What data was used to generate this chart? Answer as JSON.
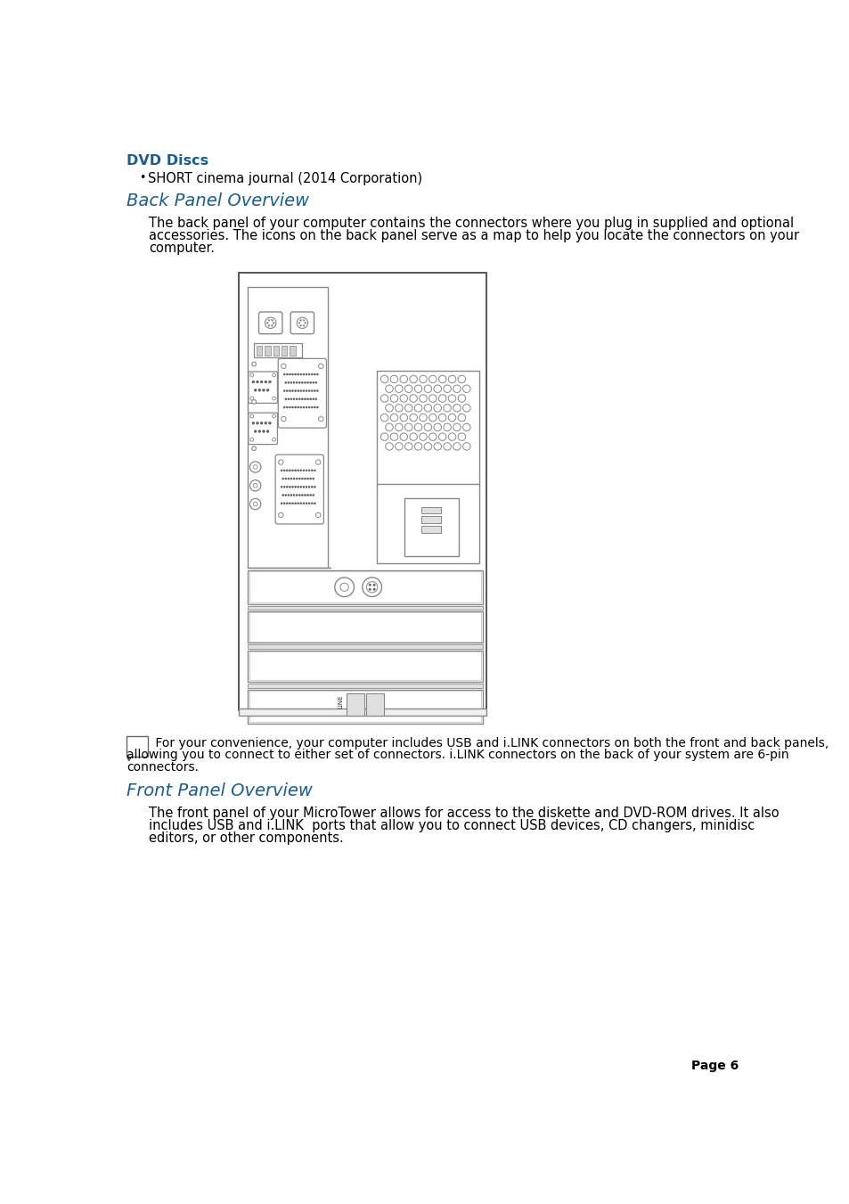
{
  "title_dvd": "DVD Discs",
  "bullet_item": "SHORT cinema journal (2014 Corporation)",
  "section1_title": "Back Panel Overview",
  "section1_body1": "The back panel of your computer contains the connectors where you plug in supplied and optional",
  "section1_body2": "accessories. The icons on the back panel serve as a map to help you locate the connectors on your",
  "section1_body3": "computer.",
  "note_line1": " For your convenience, your computer includes USB and i.LINK connectors on both the front and back panels,",
  "note_line2": "allowing you to connect to either set of connectors. i.LINK connectors on the back of your system are 6-pin",
  "note_line3": "connectors.",
  "section2_title": "Front Panel Overview",
  "section2_body1": "The front panel of your MicroTower allows for access to the diskette and DVD-ROM drives. It also",
  "section2_body2": "includes USB and i.LINK  ports that allow you to connect USB devices, CD changers, minidisc",
  "section2_body3": "editors, or other components.",
  "page_label": "Page 6",
  "bg_color": "#ffffff",
  "title_color": "#1b5e8c",
  "body_color": "#000000",
  "lc": "#888888",
  "lc_dark": "#555555"
}
